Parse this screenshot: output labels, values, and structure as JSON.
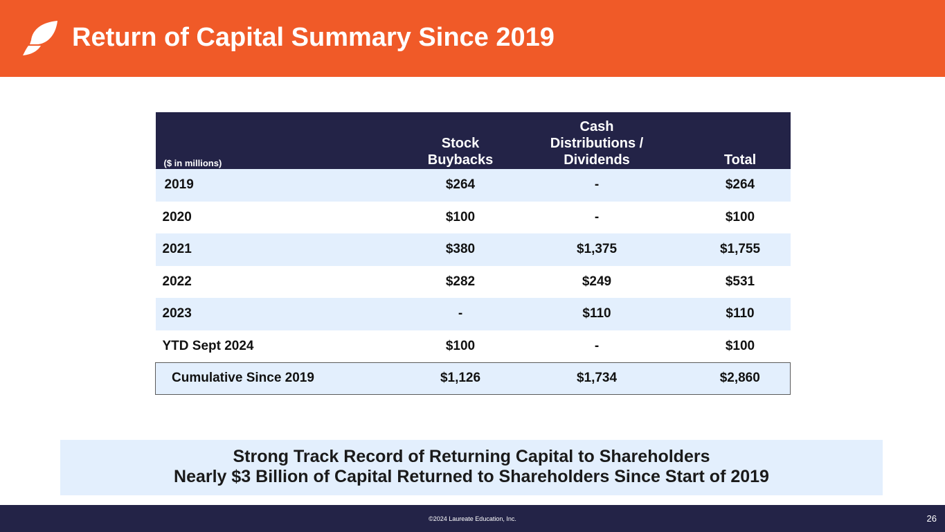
{
  "header": {
    "title": "Return of Capital Summary Since 2019",
    "bg_color": "#f05a28"
  },
  "table": {
    "unit_label": "($ in millions)",
    "columns": [
      "Stock\nBuybacks",
      "Cash\nDistributions /\nDividends",
      "Total"
    ],
    "rows": [
      {
        "label": "2019",
        "buybacks": "$264",
        "dividends": "-",
        "total": "$264"
      },
      {
        "label": "2020",
        "buybacks": "$100",
        "dividends": "-",
        "total": "$100"
      },
      {
        "label": "2021",
        "buybacks": "$380",
        "dividends": "$1,375",
        "total": "$1,755"
      },
      {
        "label": "2022",
        "buybacks": "$282",
        "dividends": "$249",
        "total": "$531"
      },
      {
        "label": "2023",
        "buybacks": "-",
        "dividends": "$110",
        "total": "$110"
      },
      {
        "label": "YTD Sept 2024",
        "buybacks": "$100",
        "dividends": "-",
        "total": "$100"
      }
    ],
    "cumulative": {
      "label": "Cumulative Since 2019",
      "buybacks": "$1,126",
      "dividends": "$1,734",
      "total": "$2,860"
    },
    "header_color": "#232347",
    "shade_color": "#e3effd"
  },
  "callout": {
    "line1": "Strong Track Record of Returning Capital to Shareholders",
    "line2": "Nearly $3 Billion of Capital Returned to Shareholders Since Start of 2019"
  },
  "footer": {
    "copyright": "©2024 Laureate Education, Inc.",
    "page_number": "26"
  }
}
